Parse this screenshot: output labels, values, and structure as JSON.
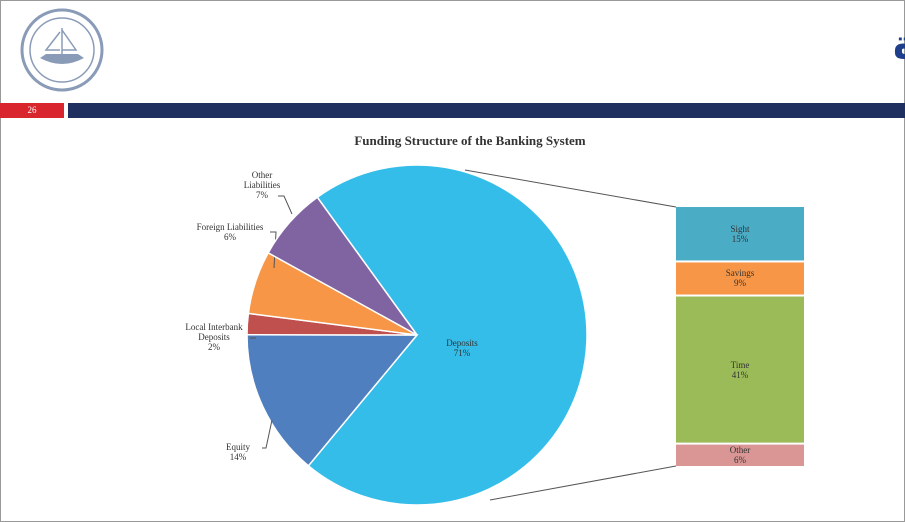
{
  "header": {
    "title": "تتمتع البنوك بقاعدة مصادر أموال مستقرة",
    "page": "26"
  },
  "chart_data": [
    {
      "type": "pie",
      "title": "Funding Structure of the Banking System",
      "categories": [
        "Deposits",
        "Equity",
        "Local Interbank Deposits",
        "Foreign Liabilities",
        "Other Liabilities"
      ],
      "values": [
        71,
        14,
        2,
        6,
        7
      ],
      "value_labels": [
        "71%",
        "14%",
        "2%",
        "6%",
        "7%"
      ],
      "colors": [
        "#35bde9",
        "#4f7fbf",
        "#c0504d",
        "#f79646",
        "#8064a2"
      ]
    },
    {
      "type": "bar",
      "stacked": true,
      "series": [
        {
          "name": "Sight",
          "color": "#4bacc6",
          "values": [
            15
          ],
          "value_labels": [
            "15%"
          ]
        },
        {
          "name": "Savings",
          "color": "#f79646",
          "values": [
            9
          ],
          "value_labels": [
            "9%"
          ]
        },
        {
          "name": "Time",
          "color": "#9bbb59",
          "values": [
            41
          ],
          "value_labels": [
            "41%"
          ]
        },
        {
          "name": "Other",
          "color": "#d99694",
          "values": [
            6
          ],
          "value_labels": [
            "6%"
          ]
        }
      ]
    }
  ]
}
